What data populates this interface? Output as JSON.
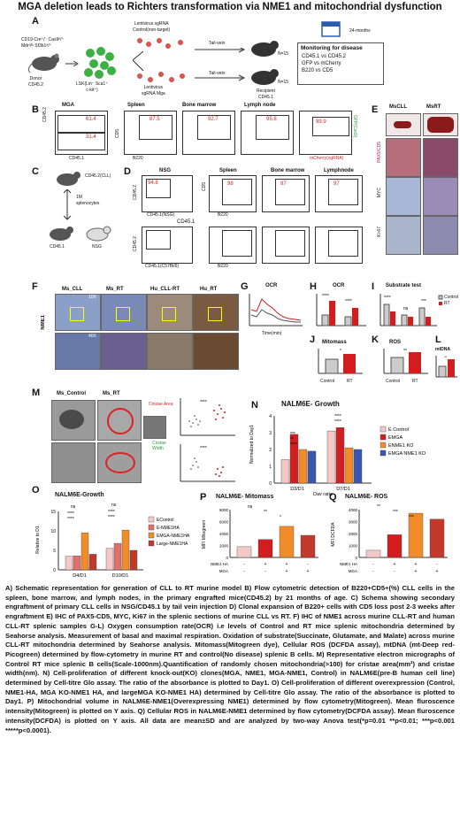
{
  "title": "MGA deletion leads to Richters transformation via NME1 and mitochondrial dysfunction",
  "panels": {
    "A": "A",
    "B": "B",
    "C": "C",
    "D": "D",
    "E": "E",
    "F": "F",
    "G": "G",
    "H": "H",
    "I": "I",
    "J": "J",
    "K": "K",
    "L": "L",
    "M": "M",
    "N": "N",
    "O": "O",
    "P": "P",
    "Q": "Q"
  },
  "panelA": {
    "donor_geno": "CD19-Cre⁺/⁻ Cas9ᶠˡ/⁺\nMdrᶠˡ/ᶠˡ Sf3b1ᶠˡ/⁺",
    "donor": "Donor\nCD45.2",
    "lsk": "LSK(Lin⁻ Sca1⁺\nc-kit⁺)",
    "lenti_top": "Lentivirus sgRNA\nControl(non-target)",
    "lenti_bottom": "Lentivirus\nsgRNA Mga",
    "tail1": "Tail-vein",
    "tail2": "Tail-vein",
    "n1": "N=15",
    "n2": "N=15",
    "recipient": "Recipient\nCD45.1",
    "months": "24-months",
    "monitor_title": "Monitoring for disease",
    "monitor_lines": [
      "CD45.1 vs CD45.2",
      "GFP vs mCherry",
      "B220 vs CD5"
    ]
  },
  "panelB": {
    "plot_titles": [
      "MGA",
      "Spleen",
      "Bone marrow",
      "Lymph node"
    ],
    "mga_vals": [
      "61.4",
      "31.4"
    ],
    "vals": [
      "87.5",
      "92.7",
      "95.8",
      "99.9"
    ],
    "x_labels": [
      "CD45.1",
      "B220"
    ],
    "y_labels": [
      "CD45.2",
      "CD5",
      "GFP(Cas9)"
    ],
    "mcherry": "mCherry(sgRNA)"
  },
  "panelC": {
    "top": "CD45.2(CLL)",
    "mid": "1M\nsplenocytes",
    "left": "CD45.1",
    "right": "NSG"
  },
  "panelD": {
    "nsg": "NSG",
    "nsg_val": "94.8",
    "titles": [
      "Spleen",
      "Bone marrow",
      "Lymphnode"
    ],
    "vals": [
      "98",
      "97",
      "97"
    ],
    "x_nsg": "CD45.1(NSG)",
    "y_lab": "CD45.2",
    "cd5": "CD5",
    "b220": "B220",
    "c57_title": "CD45.1",
    "x_c57": "CD45.1(C57Bl/6)"
  },
  "panelE": {
    "titles": [
      "MsCLL",
      "MsRT"
    ],
    "rows": [
      "PAX5/CD5",
      "MYC",
      "Ki-67"
    ]
  },
  "panelF": {
    "titles": [
      "Ms_CLL",
      "Ms_RT",
      "Hu_CLL-RT",
      "Hu_RT"
    ],
    "ylab": "NME1",
    "mag1": "10X",
    "mag2": "40X"
  },
  "panelG": {
    "title": "OCR",
    "xlab": "Time(min)",
    "ylab": "OCR (pmol/min)"
  },
  "panelH": {
    "title": "OCR",
    "cats": [
      "Basal",
      "Maximal\nRespiration capacity"
    ],
    "sig": [
      "****",
      "****"
    ]
  },
  "panelI": {
    "title": "Substrate test",
    "cats": [
      "Glutamate",
      "Fumarate\nSuccinate",
      "Succinate"
    ],
    "legend": [
      "Control",
      "RT"
    ],
    "sig": [
      "****",
      "ns",
      "***"
    ]
  },
  "panelJ": {
    "title": "Mitomass",
    "ylab": "MFI Mitogreen",
    "cats": [
      "Control",
      "RT"
    ],
    "sub": "Mouse B cells",
    "sig": "*"
  },
  "panelK": {
    "title": "ROS",
    "ylab": "MFI DCFDA",
    "cats": [
      "Control",
      "RT"
    ],
    "sub": "Mouse B cells",
    "sig": "**"
  },
  "panelL": {
    "title": "mtDNA",
    "ylab": "MFI Picogreen",
    "cats": [
      "Control",
      "Rumbr"
    ],
    "sub": "Mouse B cells",
    "sig": "**"
  },
  "panelM": {
    "titles": [
      "Ms_Control",
      "Ms_RT"
    ],
    "labels": [
      "Cristae Area",
      "Cristae\nWidth"
    ],
    "ylab1": "Cristae\nArea(nm²)",
    "ylab2": "Abnormal\nMitochondria",
    "ylab3": "Avg Cristae\nWidth(nm)"
  },
  "panelN": {
    "title": "NALM6E- Growth",
    "xlab": "Day ratio",
    "ylab": "Normalized to\nDay1",
    "cats": [
      "D3/D1",
      "D7/D1"
    ],
    "legend": [
      "E Control",
      "EMGA",
      "ENME1 KO",
      "EMGA NME1 KO"
    ],
    "colors": [
      "#f5c8c8",
      "#d21e1e",
      "#f08c2a",
      "#3a55b0"
    ],
    "ylim": [
      0,
      4
    ],
    "yticks": [
      "0",
      "1",
      "2",
      "3",
      "4"
    ],
    "sig": [
      "***",
      "**",
      "****",
      "****",
      "****"
    ]
  },
  "panelO": {
    "title": "NALM6E-Growth",
    "ylab": "Relative to D1",
    "cats": [
      "D4/D1",
      "D10/D1"
    ],
    "legend": [
      "EControl",
      "E-NME1HA",
      "EMGA-NME1HA",
      "Large-NME1HA"
    ],
    "colors": [
      "#f5c8c8",
      "#e26e6e",
      "#f08c2a",
      "#c0392b"
    ],
    "ylim": [
      0,
      15
    ],
    "yticks": [
      "0",
      "5",
      "10",
      "15"
    ],
    "sig": [
      "ns",
      "****",
      "****",
      "ns",
      "****",
      "****"
    ]
  },
  "panelP": {
    "title": "NALM6E- Mitomass",
    "ylab": "MFI Mitogreen",
    "ylim": [
      0,
      8000
    ],
    "yticks": [
      "0",
      "2000",
      "4000",
      "6000",
      "8000"
    ],
    "rows": [
      "NME1 HA",
      "MGA"
    ],
    "signs": [
      [
        "-",
        "+",
        "+",
        "-"
      ],
      [
        "-",
        "-",
        "+",
        "+"
      ]
    ],
    "values": [
      1800,
      3000,
      5200,
      3700
    ],
    "colors": [
      "#f5c8c8",
      "#d21e1e",
      "#f08c2a",
      "#c0392b"
    ],
    "sig": [
      "ns",
      "**",
      "*"
    ]
  },
  "panelQ": {
    "title": "NALM6E- ROS",
    "ylab": "MFI DCFDA",
    "ylim": [
      0,
      4000
    ],
    "yticks": [
      "0",
      "1000",
      "2000",
      "3000",
      "4000"
    ],
    "rows": [
      "NME1 HA",
      "MGA"
    ],
    "signs": [
      [
        "-",
        "+",
        "+",
        "-"
      ],
      [
        "-",
        "-",
        "+",
        "+"
      ]
    ],
    "values": [
      600,
      1900,
      3700,
      3200
    ],
    "colors": [
      "#f5c8c8",
      "#d21e1e",
      "#f08c2a",
      "#c0392b"
    ],
    "sig": [
      "**",
      "***",
      "***"
    ]
  },
  "caption": "A) Schematic representation for generation of CLL to RT murine model B) Flow cytometric detection of B220+CD5+(%) CLL cells in the spleen, bone marrow, and lymph nodes, in the primary engrafted mice(CD45.2) by 21 months of age. C) Schema showing secondary engraftment of primary CLL cells in NSG/CD45.1 by tail vein injection D) Clonal expansion of B220+ cells with CD5 loss post 2-3 weeks after engraftment E) IHC of PAX5-CD5, MYC, Ki67 in the splenic sections of murine CLL vs RT. F) IHC of NME1 across murine CLL-RT and human CLL-RT splenic samples G-L) Oxygen consumption rate(OCR) i.e levels of Control and RT mice splenic mitochondria determined by Seahorse analysis. Measurement of basal and maximal respiration. Oxidation of substrate(Succinate, Glutamate, and Malate) across murine CLL-RT mitochondria determined by Seahorse analysis. Mitomass(Mitogreen dye), Cellular ROS (DCFDA assay), mtDNA (mt-Deep red-Picogreen) determined by flow-cytometry in murine RT and control(No disease) splenic B cells. M) Representative electron micrographs of Control RT mice splenic B cells(Scale-1000nm).Quantification of randomly chosen mitochondria(>100) for cristae area(mm²) and cristae width(nm). N) Cell-proliferation of different knock-out(KO) clones(MGA, NME1, MGA-NME1, Control) in NALM6E(pre-B human cell line) determined by Cell-titre Glo assay. The ratio of the absorbance is plotted to Day1. O) Cell-proliferation of different overexpression (Control, NME1-HA, MGA KO-NME1 HA, and largeMGA KO-NME1 HA) determined by Cell-titre Glo assay. The ratio of the absorbance is plotted to Day1. P) Mitochondrial volume in NALM6E-NME1(Overexpressing NME1) determined by flow cytometry(Mitogreen). Mean fluroscence intensity(Mitogreen) is plotted on Y axis. Q) Cellular ROS in NALM6E-NME1 determined by flow cytometry(DCFDA assay). Mean fluroscence intensity(DCFDA) is plotted on Y axis. All data are mean±SD and are analyzed by two-way Anova test(*p=0.01 **p<0.01; ***p<0.001 *****p<0.0001)."
}
